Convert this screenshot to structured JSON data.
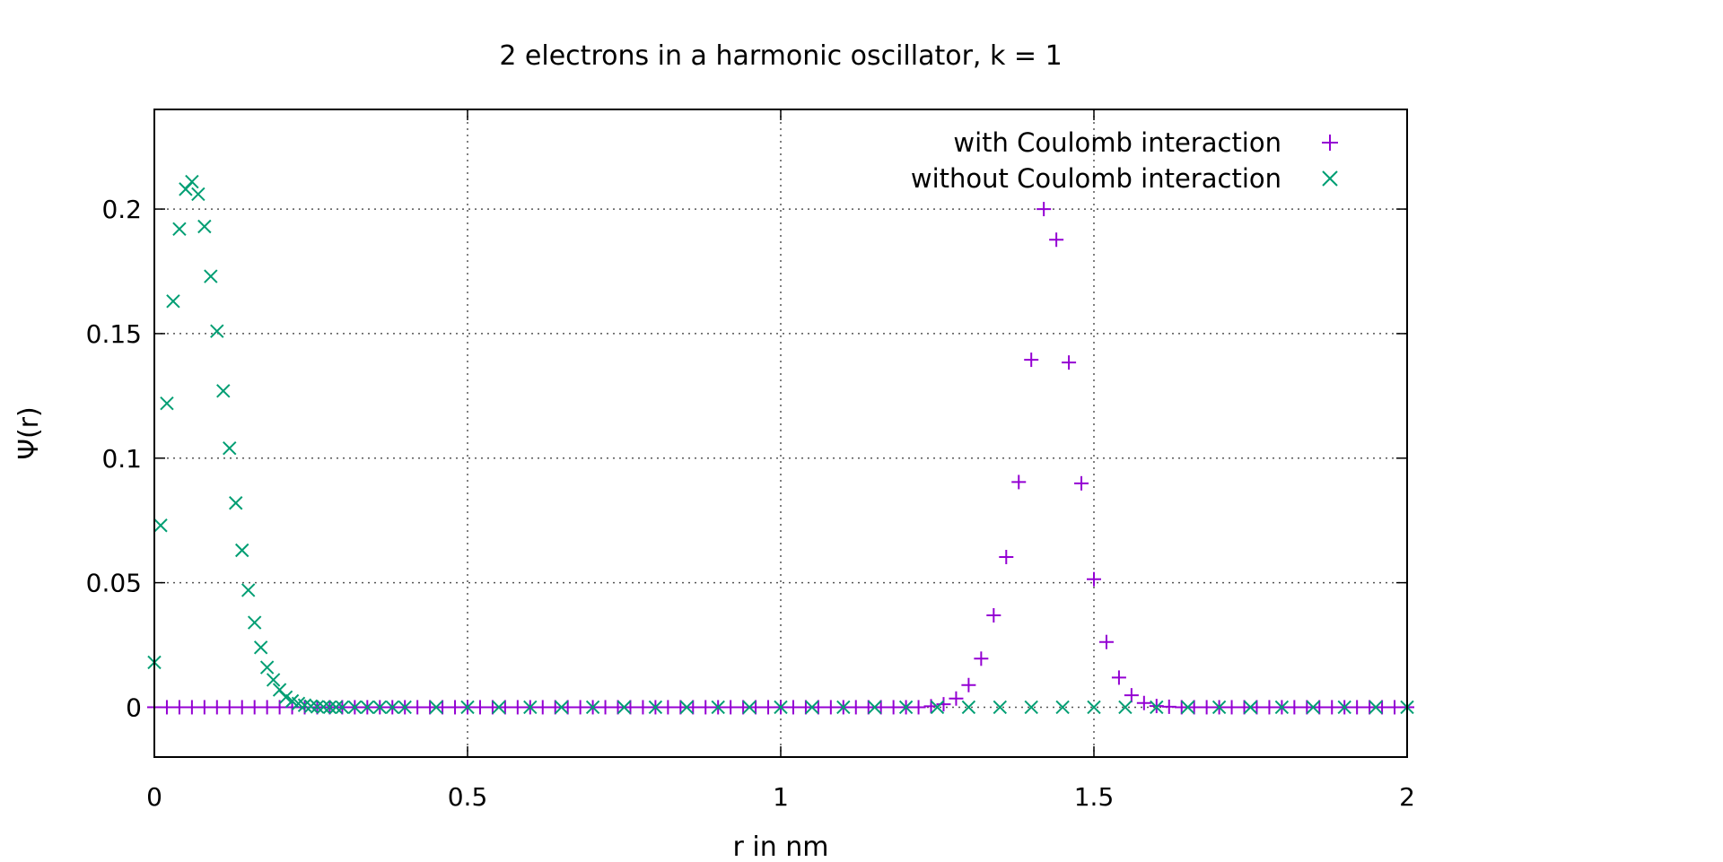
{
  "chart_data": {
    "type": "scatter",
    "title": "2 electrons in a harmonic oscillator, k = 1",
    "xlabel": "r in nm",
    "ylabel": "Ψ(r)",
    "xlim": [
      0,
      2
    ],
    "ylim": [
      -0.02,
      0.24
    ],
    "x_ticks": [
      0,
      0.5,
      1,
      1.5,
      2
    ],
    "x_tick_labels": [
      "0",
      "0.5",
      "1",
      "1.5",
      "2"
    ],
    "y_ticks": [
      0,
      0.05,
      0.1,
      0.15,
      0.2
    ],
    "y_tick_labels": [
      "0",
      "0.05",
      "0.1",
      "0.15",
      "0.2"
    ],
    "grid": true,
    "legend_position": "top-right",
    "series": [
      {
        "name": "with Coulomb interaction",
        "marker": "plus",
        "color": "#9400d3",
        "x": [
          0.0,
          0.02,
          0.04,
          0.06,
          0.08,
          0.1,
          0.12,
          0.14,
          0.16,
          0.18,
          0.2,
          0.22,
          0.24,
          0.26,
          0.28,
          0.3,
          0.32,
          0.34,
          0.36,
          0.38,
          0.4,
          0.42,
          0.44,
          0.46,
          0.48,
          0.5,
          0.52,
          0.54,
          0.56,
          0.58,
          0.6,
          0.62,
          0.64,
          0.66,
          0.68,
          0.7,
          0.72,
          0.74,
          0.76,
          0.78,
          0.8,
          0.82,
          0.84,
          0.86,
          0.88,
          0.9,
          0.92,
          0.94,
          0.96,
          0.98,
          1.0,
          1.02,
          1.04,
          1.06,
          1.08,
          1.1,
          1.12,
          1.14,
          1.16,
          1.18,
          1.2,
          1.22,
          1.24,
          1.26,
          1.28,
          1.3,
          1.32,
          1.34,
          1.36,
          1.38,
          1.4,
          1.42,
          1.44,
          1.46,
          1.48,
          1.5,
          1.52,
          1.54,
          1.56,
          1.58,
          1.6,
          1.62,
          1.64,
          1.66,
          1.68,
          1.7,
          1.72,
          1.74,
          1.76,
          1.78,
          1.8,
          1.82,
          1.84,
          1.86,
          1.88,
          1.9,
          1.92,
          1.94,
          1.96,
          1.98,
          2.0
        ],
        "y": [
          0.0,
          0.0,
          0.0,
          0.0,
          0.0,
          0.0,
          0.0,
          0.0,
          0.0,
          0.0,
          0.0,
          0.0,
          0.0,
          0.0,
          0.0,
          0.0,
          0.0,
          0.0,
          0.0,
          0.0,
          0.0,
          0.0,
          0.0,
          0.0,
          0.0,
          0.0,
          0.0,
          0.0,
          0.0,
          0.0,
          0.0,
          0.0,
          0.0,
          0.0,
          0.0,
          0.0,
          0.0,
          0.0,
          0.0,
          0.0,
          0.0,
          0.0,
          0.0,
          0.0,
          0.0,
          0.0,
          0.0,
          0.0,
          0.0,
          0.0,
          0.0,
          0.0,
          0.0,
          0.0,
          0.0,
          0.0,
          0.0,
          0.0,
          0.0,
          0.0,
          0.0,
          0.0,
          0.0004,
          0.0012,
          0.0035,
          0.0089,
          0.0195,
          0.0369,
          0.0603,
          0.0904,
          0.1395,
          0.2,
          0.1877,
          0.1384,
          0.0899,
          0.0514,
          0.0262,
          0.0119,
          0.0048,
          0.0017,
          0.0005,
          0.0002,
          0.0,
          0.0,
          0.0,
          0.0,
          0.0,
          0.0,
          0.0,
          0.0,
          0.0,
          0.0,
          0.0,
          0.0,
          0.0,
          0.0,
          0.0,
          0.0,
          0.0,
          0.0,
          0.0
        ]
      },
      {
        "name": "without Coulomb interaction",
        "marker": "cross",
        "color": "#009e73",
        "x": [
          0.0,
          0.01,
          0.02,
          0.03,
          0.04,
          0.05,
          0.06,
          0.07,
          0.08,
          0.09,
          0.1,
          0.11,
          0.12,
          0.13,
          0.14,
          0.15,
          0.16,
          0.17,
          0.18,
          0.19,
          0.2,
          0.21,
          0.22,
          0.23,
          0.24,
          0.25,
          0.26,
          0.27,
          0.28,
          0.29,
          0.3,
          0.32,
          0.34,
          0.36,
          0.38,
          0.4,
          0.45,
          0.5,
          0.55,
          0.6,
          0.65,
          0.7,
          0.75,
          0.8,
          0.85,
          0.9,
          0.95,
          1.0,
          1.05,
          1.1,
          1.15,
          1.2,
          1.25,
          1.3,
          1.35,
          1.4,
          1.45,
          1.5,
          1.55,
          1.6,
          1.65,
          1.7,
          1.75,
          1.8,
          1.85,
          1.9,
          1.95,
          2.0
        ],
        "y": [
          0.018,
          0.073,
          0.122,
          0.163,
          0.192,
          0.208,
          0.211,
          0.206,
          0.193,
          0.173,
          0.151,
          0.127,
          0.104,
          0.082,
          0.063,
          0.047,
          0.034,
          0.024,
          0.016,
          0.011,
          0.007,
          0.004,
          0.0025,
          0.0015,
          0.0008,
          0.0004,
          0.0002,
          0.0001,
          0.0,
          0.0,
          0.0,
          0.0,
          0.0,
          0.0,
          0.0,
          0.0,
          0.0,
          0.0,
          0.0,
          0.0,
          0.0,
          0.0,
          0.0,
          0.0,
          0.0,
          0.0,
          0.0,
          0.0,
          0.0,
          0.0,
          0.0,
          0.0,
          0.0,
          0.0,
          0.0,
          0.0,
          0.0,
          0.0,
          0.0,
          0.0,
          0.0,
          0.0,
          0.0,
          0.0,
          0.0,
          0.0,
          0.0,
          0.0
        ]
      }
    ]
  }
}
